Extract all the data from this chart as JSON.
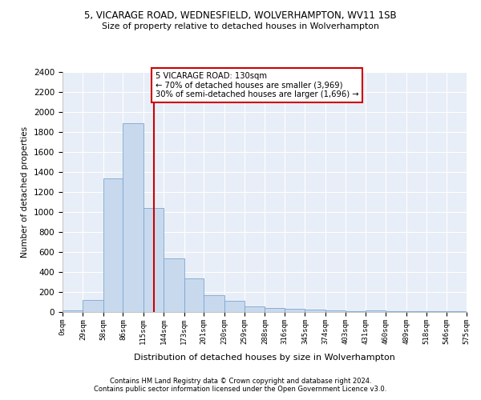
{
  "title": "5, VICARAGE ROAD, WEDNESFIELD, WOLVERHAMPTON, WV11 1SB",
  "subtitle": "Size of property relative to detached houses in Wolverhampton",
  "xlabel": "Distribution of detached houses by size in Wolverhampton",
  "ylabel": "Number of detached properties",
  "bar_color": "#c8d9ee",
  "bar_edge_color": "#7ba7cf",
  "bar_values": [
    15,
    120,
    1340,
    1890,
    1040,
    540,
    335,
    165,
    110,
    60,
    40,
    30,
    25,
    15,
    5,
    20,
    5,
    5,
    5,
    5
  ],
  "bin_edges": [
    0,
    29,
    58,
    86,
    115,
    144,
    173,
    201,
    230,
    259,
    288,
    316,
    345,
    374,
    403,
    431,
    460,
    489,
    518,
    546,
    575
  ],
  "tick_labels": [
    "0sqm",
    "29sqm",
    "58sqm",
    "86sqm",
    "115sqm",
    "144sqm",
    "173sqm",
    "201sqm",
    "230sqm",
    "259sqm",
    "288sqm",
    "316sqm",
    "345sqm",
    "374sqm",
    "403sqm",
    "431sqm",
    "460sqm",
    "489sqm",
    "518sqm",
    "546sqm",
    "575sqm"
  ],
  "vline_x": 130,
  "vline_color": "#cc0000",
  "annotation_text": "5 VICARAGE ROAD: 130sqm\n← 70% of detached houses are smaller (3,969)\n30% of semi-detached houses are larger (1,696) →",
  "annotation_box_color": "#cc0000",
  "ylim": [
    0,
    2400
  ],
  "yticks": [
    0,
    200,
    400,
    600,
    800,
    1000,
    1200,
    1400,
    1600,
    1800,
    2000,
    2200,
    2400
  ],
  "bg_color": "#e8eef7",
  "grid_color": "#ffffff",
  "footer_line1": "Contains HM Land Registry data © Crown copyright and database right 2024.",
  "footer_line2": "Contains public sector information licensed under the Open Government Licence v3.0."
}
